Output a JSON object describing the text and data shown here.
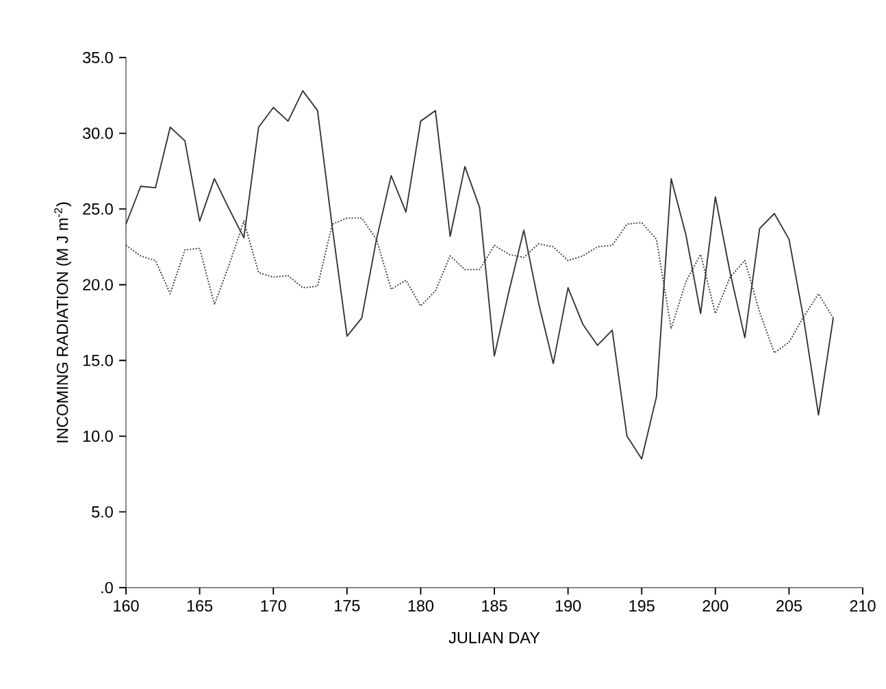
{
  "chart_data": {
    "type": "line",
    "xlabel": "JULIAN DAY",
    "ylabel": "INCOMING RADIATION  (M J m$^{-2}$)",
    "x": [
      160,
      161,
      162,
      163,
      164,
      165,
      166,
      167,
      168,
      169,
      170,
      171,
      172,
      173,
      174,
      175,
      176,
      177,
      178,
      179,
      180,
      181,
      182,
      183,
      184,
      185,
      186,
      187,
      188,
      189,
      190,
      191,
      192,
      193,
      194,
      195,
      196,
      197,
      198,
      199,
      200,
      201,
      202,
      203,
      204,
      205,
      206,
      207,
      208
    ],
    "series": [
      {
        "color": "#333333",
        "line_style": "solid",
        "values": [
          24.0,
          26.5,
          26.4,
          30.4,
          29.5,
          24.2,
          27.0,
          25.0,
          23.1,
          30.4,
          31.7,
          30.8,
          32.8,
          31.5,
          23.8,
          16.6,
          17.8,
          23.0,
          27.2,
          24.8,
          30.8,
          31.5,
          23.2,
          27.8,
          25.1,
          15.3,
          19.6,
          23.6,
          18.8,
          14.8,
          19.8,
          17.4,
          16.0,
          17.0,
          10.0,
          8.5,
          12.6,
          27.0,
          23.3,
          18.1,
          25.8,
          20.8,
          16.5,
          23.7,
          24.7,
          23.0,
          17.7,
          11.4,
          17.8
        ]
      },
      {
        "color": "#333333",
        "line_style": "dotted",
        "values": [
          22.6,
          21.9,
          21.6,
          19.4,
          22.3,
          22.4,
          18.7,
          21.3,
          24.2,
          20.8,
          20.5,
          20.6,
          19.8,
          19.9,
          24.0,
          24.4,
          24.4,
          23.0,
          19.7,
          20.3,
          18.6,
          19.6,
          21.9,
          21.0,
          21.0,
          22.6,
          22.0,
          21.8,
          22.7,
          22.5,
          21.6,
          21.9,
          22.5,
          22.6,
          24.0,
          24.1,
          23.0,
          17.1,
          20.2,
          22.0,
          18.1,
          20.5,
          21.6,
          18.2,
          15.5,
          16.2,
          17.9,
          19.4,
          17.8
        ]
      }
    ],
    "xlim": [
      160,
      210
    ],
    "xticks": [
      160,
      165,
      170,
      175,
      180,
      185,
      190,
      195,
      200,
      205,
      210
    ],
    "ylim": [
      0,
      35
    ],
    "yticks": [
      {
        "value": 0,
        "label": ".0"
      },
      {
        "value": 5,
        "label": "5.0"
      },
      {
        "value": 10,
        "label": "10.0"
      },
      {
        "value": 15,
        "label": "15.0"
      },
      {
        "value": 20,
        "label": "20.0"
      },
      {
        "value": 25,
        "label": "25.0"
      },
      {
        "value": 30,
        "label": "30.0"
      },
      {
        "value": 35,
        "label": "35.0"
      }
    ],
    "grid": false,
    "marker": "none"
  }
}
